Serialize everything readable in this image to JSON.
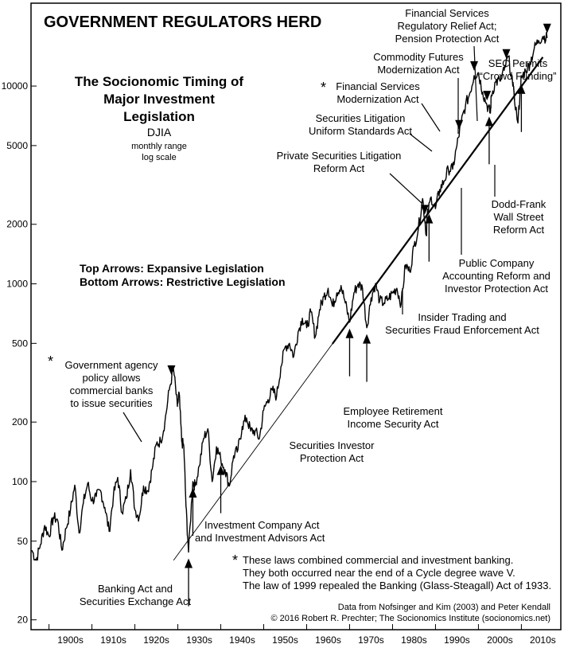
{
  "chart_data": {
    "type": "line",
    "title": "GOVERNMENT REGULATORS HERD",
    "subtitle_lines": [
      "The Socionomic Timing of",
      "Major Investment",
      "Legislation"
    ],
    "series_label": "DJIA",
    "series_note_lines": [
      "monthly range",
      "log scale"
    ],
    "y_scale": "log",
    "ylim": [
      18,
      26000
    ],
    "xlim": [
      1896,
      2019
    ],
    "y_ticks": [
      20,
      50,
      100,
      200,
      500,
      1000,
      2000,
      5000,
      10000
    ],
    "x_ticks": [
      {
        "year": 1905,
        "label": "1900s"
      },
      {
        "year": 1915,
        "label": "1910s"
      },
      {
        "year": 1925,
        "label": "1920s"
      },
      {
        "year": 1935,
        "label": "1930s"
      },
      {
        "year": 1945,
        "label": "1940s"
      },
      {
        "year": 1955,
        "label": "1950s"
      },
      {
        "year": 1965,
        "label": "1960s"
      },
      {
        "year": 1975,
        "label": "1970s"
      },
      {
        "year": 1985,
        "label": "1980s"
      },
      {
        "year": 1995,
        "label": "1990s"
      },
      {
        "year": 2005,
        "label": "2000s"
      },
      {
        "year": 2015,
        "label": "2010s"
      }
    ],
    "series": [
      {
        "points": [
          [
            1896,
            45
          ],
          [
            1897,
            40
          ],
          [
            1898,
            48
          ],
          [
            1899,
            60
          ],
          [
            1900,
            53
          ],
          [
            1901,
            66
          ],
          [
            1902,
            64
          ],
          [
            1903,
            45
          ],
          [
            1904,
            58
          ],
          [
            1905,
            72
          ],
          [
            1906,
            96
          ],
          [
            1907,
            55
          ],
          [
            1908,
            78
          ],
          [
            1909,
            98
          ],
          [
            1910,
            80
          ],
          [
            1911,
            84
          ],
          [
            1912,
            90
          ],
          [
            1913,
            74
          ],
          [
            1914,
            56
          ],
          [
            1915,
            85
          ],
          [
            1916,
            105
          ],
          [
            1917,
            70
          ],
          [
            1918,
            82
          ],
          [
            1919,
            115
          ],
          [
            1920,
            72
          ],
          [
            1921,
            66
          ],
          [
            1922,
            95
          ],
          [
            1923,
            90
          ],
          [
            1924,
            115
          ],
          [
            1925,
            155
          ],
          [
            1926,
            160
          ],
          [
            1927,
            200
          ],
          [
            1928,
            290
          ],
          [
            1929,
            370
          ],
          [
            1929.9,
            240
          ],
          [
            1930.3,
            280
          ],
          [
            1930.9,
            160
          ],
          [
            1931.4,
            150
          ],
          [
            1931.9,
            75
          ],
          [
            1932.5,
            44
          ],
          [
            1933.5,
            100
          ],
          [
            1934,
            95
          ],
          [
            1935,
            120
          ],
          [
            1936,
            165
          ],
          [
            1937,
            185
          ],
          [
            1938,
            100
          ],
          [
            1939,
            150
          ],
          [
            1940,
            130
          ],
          [
            1941,
            115
          ],
          [
            1942,
            95
          ],
          [
            1943,
            135
          ],
          [
            1944,
            145
          ],
          [
            1945,
            190
          ],
          [
            1946,
            210
          ],
          [
            1947,
            180
          ],
          [
            1948,
            180
          ],
          [
            1949,
            165
          ],
          [
            1950,
            230
          ],
          [
            1951,
            260
          ],
          [
            1952,
            290
          ],
          [
            1953,
            270
          ],
          [
            1954,
            380
          ],
          [
            1955,
            480
          ],
          [
            1956,
            500
          ],
          [
            1957,
            430
          ],
          [
            1958,
            570
          ],
          [
            1959,
            670
          ],
          [
            1960,
            600
          ],
          [
            1961,
            720
          ],
          [
            1962,
            540
          ],
          [
            1963,
            740
          ],
          [
            1964,
            860
          ],
          [
            1965,
            950
          ],
          [
            1966,
            770
          ],
          [
            1967,
            900
          ],
          [
            1968,
            980
          ],
          [
            1969,
            800
          ],
          [
            1970,
            640
          ],
          [
            1971,
            900
          ],
          [
            1972,
            1000
          ],
          [
            1973,
            950
          ],
          [
            1974,
            600
          ],
          [
            1975,
            850
          ],
          [
            1976,
            1000
          ],
          [
            1977,
            820
          ],
          [
            1978,
            800
          ],
          [
            1979,
            840
          ],
          [
            1980,
            900
          ],
          [
            1981,
            950
          ],
          [
            1982,
            790
          ],
          [
            1983,
            1250
          ],
          [
            1984,
            1150
          ],
          [
            1985,
            1550
          ],
          [
            1986,
            1900
          ],
          [
            1987,
            2700
          ],
          [
            1987.9,
            1750
          ],
          [
            1988,
            2150
          ],
          [
            1989,
            2750
          ],
          [
            1990,
            2400
          ],
          [
            1991,
            3000
          ],
          [
            1992,
            3300
          ],
          [
            1993,
            3800
          ],
          [
            1994,
            3800
          ],
          [
            1995,
            5000
          ],
          [
            1996,
            6500
          ],
          [
            1997,
            8000
          ],
          [
            1998,
            9200
          ],
          [
            1999,
            11300
          ],
          [
            2000,
            11700
          ],
          [
            2001,
            9300
          ],
          [
            2002,
            8000
          ],
          [
            2002.8,
            7300
          ],
          [
            2003,
            9000
          ],
          [
            2004,
            10500
          ],
          [
            2005,
            10600
          ],
          [
            2006,
            12000
          ],
          [
            2007,
            14100
          ],
          [
            2008,
            10000
          ],
          [
            2009.2,
            6500
          ],
          [
            2009.8,
            10000
          ],
          [
            2010,
            11000
          ],
          [
            2011,
            12000
          ],
          [
            2012,
            13000
          ],
          [
            2013,
            15500
          ],
          [
            2014,
            17000
          ],
          [
            2015,
            17800
          ],
          [
            2016,
            17500
          ]
        ]
      }
    ],
    "trendline": [
      [
        1929,
        40
      ],
      [
        2015,
        14000
      ]
    ],
    "top_arrow_years": [
      1928.5,
      1987.5,
      1995.5,
      1999,
      2002,
      2006.5,
      2016
    ],
    "bottom_arrow_years": [
      1932.5,
      1933.5,
      1940,
      1970,
      1974,
      1988.5,
      2002.5,
      2010
    ]
  },
  "legend": {
    "line1": "Top Arrows: Expansive Legislation",
    "line2": "Bottom Arrows: Restrictive Legislation"
  },
  "annotations": {
    "gov_agency": {
      "star": "*",
      "lines": [
        "Government agency",
        "policy allows",
        "commercial banks",
        "to issue securities"
      ]
    },
    "banking_act": {
      "lines": [
        "Banking Act and",
        "Securities Exchange Act"
      ]
    },
    "investment_co": {
      "lines": [
        "Investment Company Act",
        "and Investment Advisors Act"
      ]
    },
    "sipa": {
      "lines": [
        "Securities Investor",
        "Protection Act"
      ]
    },
    "erisa": {
      "lines": [
        "Employee Retirement",
        "Income Security Act"
      ]
    },
    "insider": {
      "lines": [
        "Insider Trading and",
        "Securities Fraud Enforcement Act"
      ]
    },
    "pslra": {
      "lines": [
        "Private Securities Litigation",
        "Reform Act"
      ]
    },
    "slusa": {
      "lines": [
        "Securities Litigation",
        "Uniform Standards Act"
      ]
    },
    "fsma": {
      "star": "*",
      "lines": [
        "Financial Services",
        "Modernization Act"
      ]
    },
    "cfma": {
      "lines": [
        "Commodity Futures",
        "Modernization Act"
      ]
    },
    "fsrra": {
      "lines": [
        "Financial Services",
        "Regulatory Relief Act;",
        "Pension Protection Act"
      ]
    },
    "sec_cf": {
      "lines": [
        "SEC Permits",
        "“Crowd Funding”"
      ]
    },
    "sox": {
      "lines": [
        "Public Company",
        "Accounting Reform and",
        "Investor Protection Act"
      ]
    },
    "dodd_frank": {
      "lines": [
        "Dodd-Frank",
        "Wall Street",
        "Reform Act"
      ]
    }
  },
  "footnote": {
    "star": "*",
    "lines": [
      "These laws combined commercial and investment banking.",
      "They both occurred near the end of a Cycle degree wave V.",
      "The law of 1999 repealed the Banking (Glass-Steagall) Act of 1933."
    ]
  },
  "source_lines": [
    "Data from Nofsinger and Kim (2003) and Peter Kendall",
    "© 2016 Robert R. Prechter; The Socionomics Institute (socionomics.net)"
  ]
}
